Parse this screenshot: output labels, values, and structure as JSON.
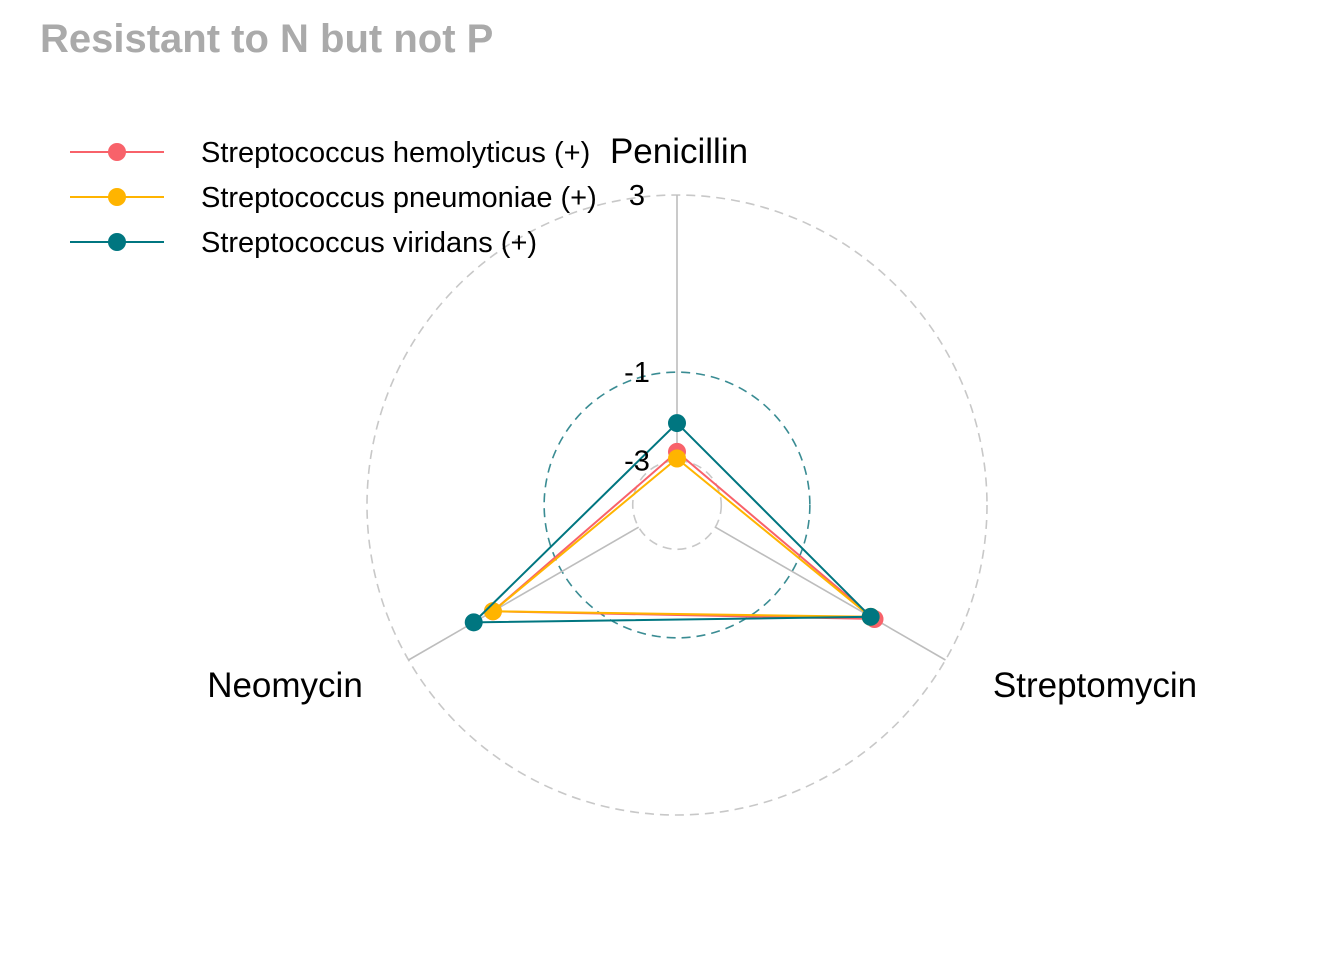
{
  "chart_data": {
    "type": "radar",
    "title": "Resistant to N but not P",
    "axes": [
      "Penicillin",
      "Streptomycin",
      "Neomycin"
    ],
    "grid_values": [
      -3,
      -1,
      3
    ],
    "grid_labels": [
      "-3",
      "-1",
      "3"
    ],
    "range": [
      -4,
      3
    ],
    "legend_position": "top-left",
    "series": [
      {
        "name": "Streptococcus hemolyticus (+)",
        "color": "#F8626A",
        "values": [
          -2.8,
          1.15,
          0.8
        ]
      },
      {
        "name": "Streptococcus pneumoniae (+)",
        "color": "#FFB400",
        "values": [
          -2.95,
          1.05,
          0.8
        ]
      },
      {
        "name": "Streptococcus viridans (+)",
        "color": "#007680",
        "values": [
          -2.15,
          1.05,
          1.3
        ]
      }
    ]
  }
}
